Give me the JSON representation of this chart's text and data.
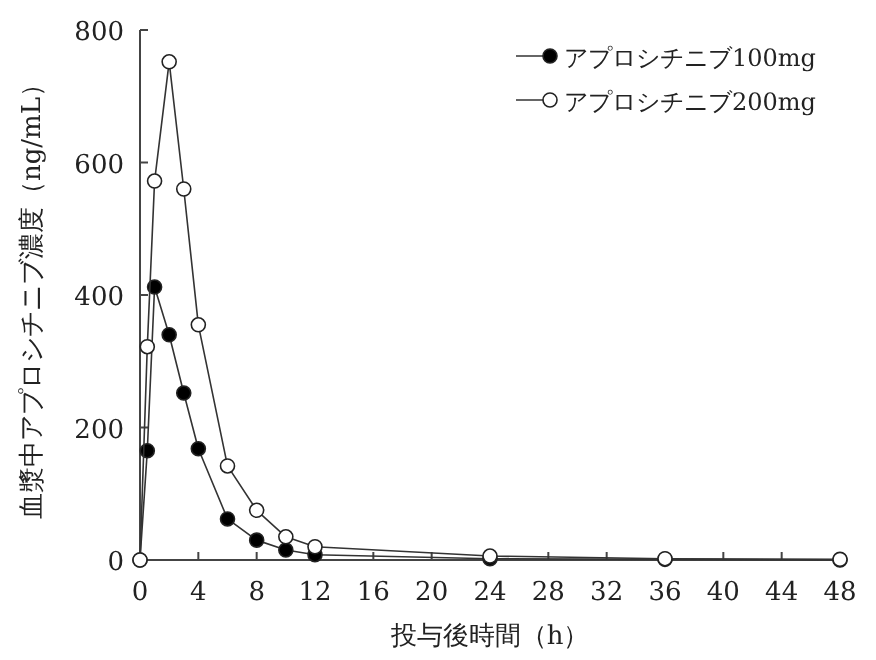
{
  "chart_data": {
    "type": "line",
    "xlabel": "投与後時間（h）",
    "ylabel": "血漿中アプロシチニブ濃度（ng/mL）",
    "series": [
      {
        "name": "アプロシチニブ100mg",
        "color": "#000000",
        "x": [
          0,
          0.5,
          1,
          2,
          3,
          4,
          6,
          8,
          10,
          12,
          24,
          36,
          48
        ],
        "values": [
          0,
          165,
          412,
          340,
          252,
          168,
          62,
          30,
          15,
          8,
          2,
          1,
          0
        ]
      },
      {
        "name": "アプロシチニブ200mg",
        "color": "#ffffff",
        "x": [
          0,
          0.5,
          1,
          2,
          3,
          4,
          6,
          8,
          10,
          12,
          24,
          36,
          48
        ],
        "values": [
          0,
          322,
          572,
          752,
          560,
          355,
          142,
          75,
          35,
          20,
          6,
          2,
          1
        ]
      }
    ],
    "xlim": [
      0,
      48
    ],
    "xticks": [
      0,
      4,
      8,
      12,
      16,
      20,
      24,
      28,
      32,
      36,
      40,
      44,
      48
    ],
    "ylim": [
      0,
      800
    ],
    "yticks": [
      0,
      200,
      400,
      600,
      800
    ],
    "legend": "top right",
    "marker": "circle",
    "grid": false
  }
}
